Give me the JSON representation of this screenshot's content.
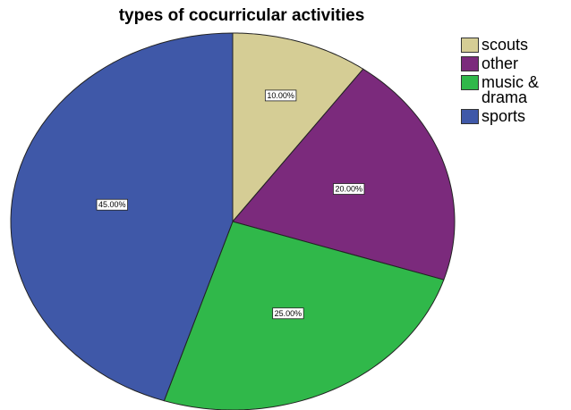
{
  "chart_data": {
    "type": "pie",
    "title": "types of cocurricular activities",
    "categories": [
      "scouts",
      "other",
      "music & drama",
      "sports"
    ],
    "values": [
      10,
      20,
      25,
      45
    ],
    "value_labels": [
      "10.00%",
      "20.00%",
      "25.00%",
      "45.00%"
    ],
    "colors": [
      "#d5cd95",
      "#7b2a7c",
      "#30b84a",
      "#3f58a8"
    ],
    "legend": "top-right"
  }
}
